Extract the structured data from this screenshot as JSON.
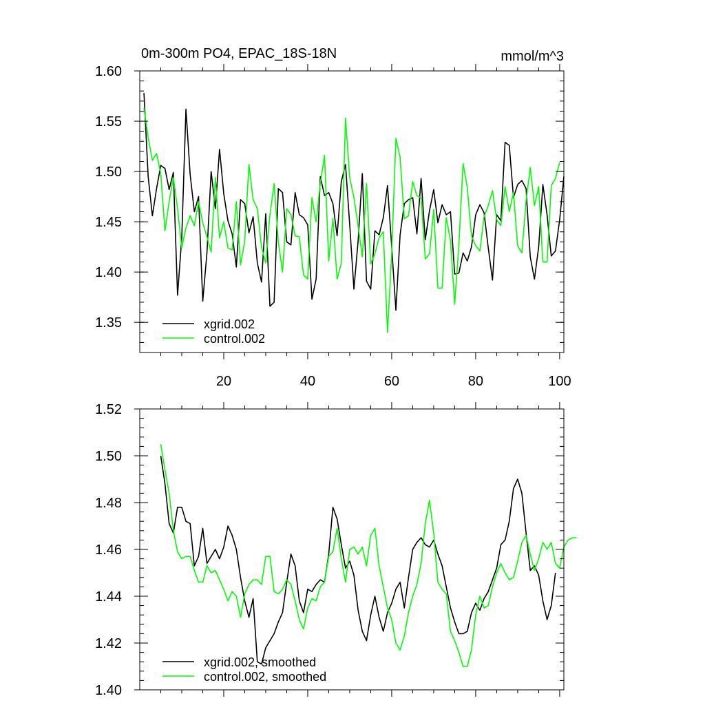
{
  "chart_data": [
    {
      "type": "line",
      "title": "0m-300m PO4, EPAC_18S-18N",
      "units": "mmol/m^3",
      "xlim": [
        0,
        101
      ],
      "ylim": [
        1.32,
        1.6
      ],
      "xticks": [
        20,
        40,
        60,
        80,
        100
      ],
      "xtick_labels": [
        "20",
        "40",
        "60",
        "80",
        "100"
      ],
      "yticks": [
        1.35,
        1.4,
        1.45,
        1.5,
        1.55,
        1.6
      ],
      "ytick_labels": [
        "1.35",
        "1.40",
        "1.45",
        "1.50",
        "1.55",
        "1.60"
      ],
      "legend_position": "bottom-left",
      "series": [
        {
          "name": "xgrid.002",
          "color": "#000000",
          "x_start": 1,
          "values": [
            1.578,
            1.495,
            1.456,
            1.483,
            1.506,
            1.503,
            1.482,
            1.499,
            1.377,
            1.434,
            1.562,
            1.497,
            1.46,
            1.475,
            1.371,
            1.419,
            1.5,
            1.463,
            1.522,
            1.478,
            1.451,
            1.438,
            1.405,
            1.472,
            1.468,
            1.439,
            1.455,
            1.409,
            1.39,
            1.458,
            1.366,
            1.37,
            1.483,
            1.479,
            1.43,
            1.427,
            1.479,
            1.457,
            1.454,
            1.447,
            1.373,
            1.393,
            1.495,
            1.476,
            1.479,
            1.468,
            1.436,
            1.49,
            1.507,
            1.447,
            1.383,
            1.431,
            1.498,
            1.391,
            1.383,
            1.441,
            1.437,
            1.454,
            1.486,
            1.425,
            1.362,
            1.437,
            1.468,
            1.472,
            1.474,
            1.438,
            1.493,
            1.432,
            1.461,
            1.482,
            1.449,
            1.467,
            1.457,
            1.46,
            1.398,
            1.399,
            1.419,
            1.411,
            1.425,
            1.457,
            1.467,
            1.459,
            1.424,
            1.392,
            1.457,
            1.451,
            1.529,
            1.526,
            1.474,
            1.487,
            1.491,
            1.483,
            1.415,
            1.393,
            1.425,
            1.487,
            1.457,
            1.416,
            1.421,
            1.452,
            1.495
          ]
        },
        {
          "name": "control.002",
          "color": "#00ff00",
          "x_start": 1,
          "values": [
            1.563,
            1.534,
            1.511,
            1.518,
            1.498,
            1.441,
            1.47,
            1.494,
            1.463,
            1.424,
            1.444,
            1.456,
            1.446,
            1.47,
            1.449,
            1.435,
            1.42,
            1.494,
            1.434,
            1.45,
            1.424,
            1.422,
            1.47,
            1.407,
            1.431,
            1.507,
            1.472,
            1.463,
            1.425,
            1.409,
            1.457,
            1.488,
            1.43,
            1.4,
            1.463,
            1.457,
            1.436,
            1.435,
            1.397,
            1.393,
            1.474,
            1.45,
            1.488,
            1.516,
            1.411,
            1.453,
            1.393,
            1.409,
            1.553,
            1.494,
            1.474,
            1.446,
            1.415,
            1.488,
            1.408,
            1.418,
            1.434,
            1.44,
            1.34,
            1.419,
            1.533,
            1.514,
            1.453,
            1.456,
            1.49,
            1.476,
            1.474,
            1.413,
            1.418,
            1.462,
            1.384,
            1.384,
            1.454,
            1.431,
            1.368,
            1.427,
            1.508,
            1.484,
            1.436,
            1.426,
            1.421,
            1.455,
            1.466,
            1.481,
            1.452,
            1.446,
            1.485,
            1.46,
            1.479,
            1.426,
            1.419,
            1.471,
            1.504,
            1.466,
            1.485,
            1.41,
            1.41,
            1.486,
            1.493,
            1.509
          ]
        }
      ]
    },
    {
      "type": "line",
      "xlim": [
        0,
        101
      ],
      "ylim": [
        1.4,
        1.52
      ],
      "xticks": [
        20,
        40,
        60,
        80,
        100
      ],
      "yticks": [
        1.4,
        1.42,
        1.44,
        1.46,
        1.48,
        1.5,
        1.52
      ],
      "ytick_labels": [
        "1.40",
        "1.42",
        "1.44",
        "1.46",
        "1.48",
        "1.50",
        "1.52"
      ],
      "legend_position": "bottom-left",
      "series": [
        {
          "name": "xgrid.002, smoothed",
          "color": "#000000",
          "x_start": 5,
          "values": [
            1.5,
            1.488,
            1.471,
            1.467,
            1.478,
            1.478,
            1.472,
            1.471,
            1.453,
            1.457,
            1.469,
            1.454,
            1.457,
            1.46,
            1.456,
            1.461,
            1.47,
            1.466,
            1.46,
            1.448,
            1.438,
            1.431,
            1.439,
            1.412,
            1.411,
            1.418,
            1.421,
            1.424,
            1.429,
            1.433,
            1.446,
            1.458,
            1.453,
            1.438,
            1.433,
            1.443,
            1.442,
            1.445,
            1.447,
            1.446,
            1.458,
            1.478,
            1.473,
            1.462,
            1.452,
            1.455,
            1.449,
            1.434,
            1.425,
            1.421,
            1.432,
            1.44,
            1.431,
            1.425,
            1.433,
            1.437,
            1.443,
            1.446,
            1.435,
            1.448,
            1.46,
            1.463,
            1.465,
            1.462,
            1.461,
            1.464,
            1.458,
            1.453,
            1.444,
            1.435,
            1.429,
            1.424,
            1.424,
            1.425,
            1.433,
            1.437,
            1.434,
            1.439,
            1.442,
            1.447,
            1.452,
            1.462,
            1.464,
            1.472,
            1.486,
            1.49,
            1.484,
            1.467,
            1.451,
            1.453,
            1.449,
            1.438,
            1.43,
            1.436,
            1.45
          ]
        },
        {
          "name": "control.002, smoothed",
          "color": "#00ff00",
          "x_start": 5,
          "values": [
            1.505,
            1.494,
            1.484,
            1.468,
            1.459,
            1.456,
            1.457,
            1.457,
            1.451,
            1.446,
            1.446,
            1.453,
            1.45,
            1.451,
            1.447,
            1.443,
            1.438,
            1.442,
            1.44,
            1.431,
            1.441,
            1.445,
            1.447,
            1.447,
            1.445,
            1.457,
            1.457,
            1.442,
            1.441,
            1.443,
            1.447,
            1.445,
            1.438,
            1.43,
            1.426,
            1.435,
            1.439,
            1.438,
            1.444,
            1.446,
            1.457,
            1.459,
            1.469,
            1.456,
            1.446,
            1.46,
            1.461,
            1.458,
            1.461,
            1.453,
            1.466,
            1.469,
            1.453,
            1.444,
            1.435,
            1.43,
            1.42,
            1.417,
            1.423,
            1.433,
            1.44,
            1.445,
            1.454,
            1.471,
            1.481,
            1.467,
            1.446,
            1.443,
            1.441,
            1.425,
            1.421,
            1.416,
            1.41,
            1.41,
            1.417,
            1.432,
            1.44,
            1.435,
            1.436,
            1.444,
            1.45,
            1.454,
            1.45,
            1.447,
            1.448,
            1.455,
            1.463,
            1.466,
            1.458,
            1.451,
            1.456,
            1.463,
            1.46,
            1.463,
            1.454,
            1.452,
            1.461,
            1.464,
            1.465,
            1.465
          ]
        }
      ]
    }
  ]
}
